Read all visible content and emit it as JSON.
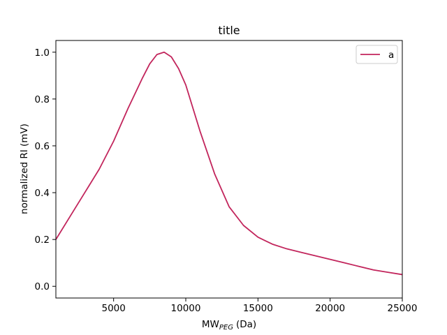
{
  "chart_data": {
    "type": "line",
    "title": "title",
    "xlabel_main": "MW",
    "xlabel_sub": "PEG",
    "xlabel_unit": "(Da)",
    "ylabel": "normalized RI (mV)",
    "xlim": [
      1000,
      25000
    ],
    "ylim": [
      -0.05,
      1.05
    ],
    "xticks": [
      5000,
      10000,
      15000,
      20000,
      25000
    ],
    "yticks": [
      0.0,
      0.2,
      0.4,
      0.6,
      0.8,
      1.0
    ],
    "xtick_labels": [
      "5000",
      "10000",
      "15000",
      "20000",
      "25000"
    ],
    "ytick_labels": [
      "0.0",
      "0.2",
      "0.4",
      "0.6",
      "0.8",
      "1.0"
    ],
    "grid": false,
    "legend_position": "top-right",
    "series": [
      {
        "name": "a",
        "color": "#c2255c",
        "x": [
          1000,
          2000,
          3000,
          4000,
          5000,
          6000,
          7000,
          7500,
          8000,
          8500,
          9000,
          9500,
          10000,
          11000,
          12000,
          13000,
          14000,
          15000,
          16000,
          17000,
          18000,
          19000,
          20000,
          21000,
          22000,
          23000,
          24000,
          25000
        ],
        "y": [
          0.2,
          0.3,
          0.4,
          0.5,
          0.62,
          0.76,
          0.89,
          0.95,
          0.99,
          1.0,
          0.98,
          0.93,
          0.86,
          0.66,
          0.48,
          0.34,
          0.26,
          0.21,
          0.18,
          0.16,
          0.145,
          0.13,
          0.115,
          0.1,
          0.085,
          0.07,
          0.06,
          0.05
        ]
      }
    ]
  }
}
